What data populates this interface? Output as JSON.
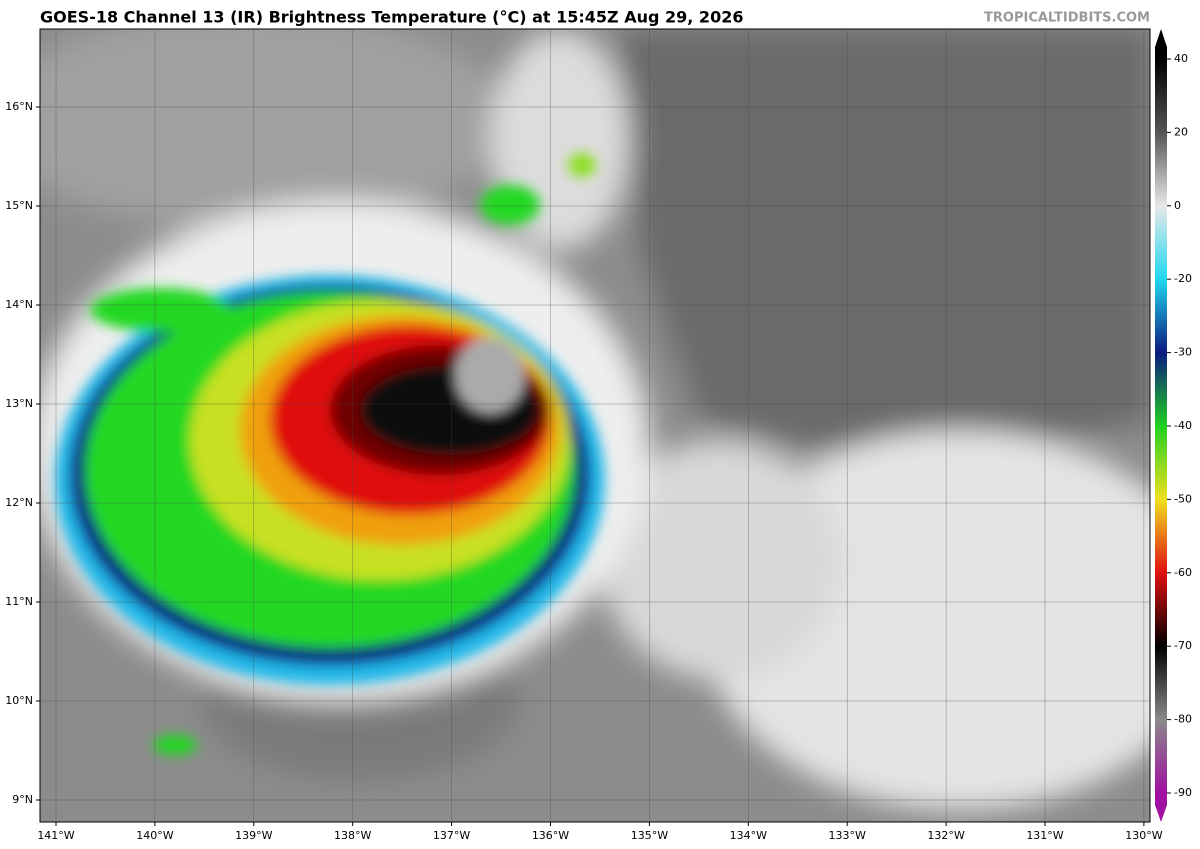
{
  "map": {
    "title": "GOES-18 Channel 13 (IR) Brightness Temperature (°C) at 15:45Z Aug 29, 2026",
    "watermark": "TROPICALTIDBITS.COM",
    "longitude_labels": [
      "141°W",
      "140°W",
      "139°W",
      "138°W",
      "137°W",
      "136°W",
      "135°W",
      "134°W",
      "133°W",
      "132°W",
      "131°W",
      "130°W"
    ],
    "latitude_labels": [
      "16°N",
      "15°N",
      "14°N",
      "13°N",
      "12°N",
      "11°N",
      "10°N",
      "9°N"
    ],
    "colorbar": {
      "ticks": [
        40,
        20,
        0,
        -20,
        -30,
        -40,
        -50,
        -60,
        -70,
        -80,
        -90
      ],
      "colors": [
        "#000000",
        "#555555",
        "#e8e8e8",
        "#20d8f0",
        "#0a1a80",
        "#20d020",
        "#f0e020",
        "#e01010",
        "#000000",
        "#8a8a8a",
        "#a010a0"
      ]
    }
  }
}
